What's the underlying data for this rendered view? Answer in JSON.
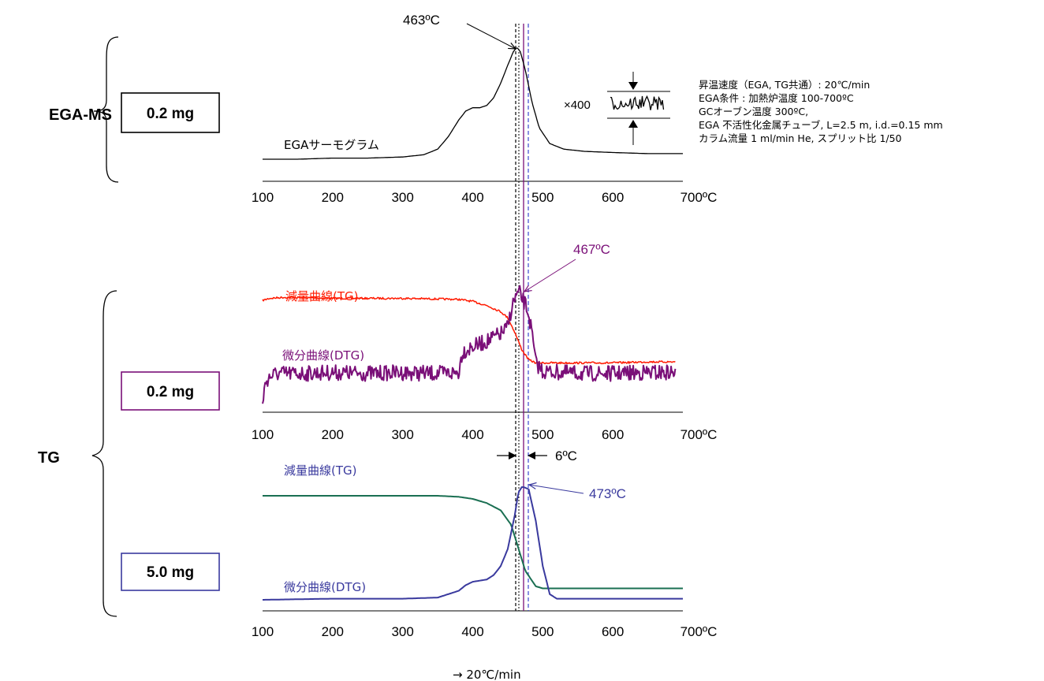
{
  "colors": {
    "black": "#000000",
    "purple": "#7a0f78",
    "red": "#ff1a00",
    "blue": "#3a3a9e",
    "green": "#1a6f52",
    "blue_dash": "#3b46d0"
  },
  "labels": {
    "section_egams": "EGA-MS",
    "section_tg": "TG",
    "box_egams": "0.2 mg",
    "box_tg_small": "0.2 mg",
    "box_tg_large": "5.0 mg",
    "peak_ega": "463ºC",
    "peak_tg_small": "467ºC",
    "peak_tg_large": "473ºC",
    "shift": "6ºC",
    "ega_curve": "EGAサーモグラム",
    "tg_curve_small": "減量曲線(TG)",
    "dtg_curve_small": "微分曲線(DTG)",
    "tg_curve_large": "減量曲線(TG)",
    "dtg_curve_large": "微分曲線(DTG)",
    "inset_mag": "×400",
    "bottom_note": "→ 20℃/min"
  },
  "conditions": [
    "昇温速度（EGA, TG共通）: 20℃/min",
    "EGA条件 : 加熱炉温度 100-700ºC",
    "GCオーブン温度 300ºC,",
    "EGA 不活性化金属チューブ, L=2.5 m, i.d.=0.15 mm",
    "カラム流量 1 ml/min He, スプリット比 1/50"
  ],
  "chart_data": [
    {
      "type": "line",
      "panel": "EGA-MS",
      "x_ticks": [
        "100",
        "200",
        "300",
        "400",
        "500",
        "600",
        "700ºC"
      ],
      "xlim": [
        100,
        700
      ],
      "series": [
        {
          "name": "EGAサーモグラム",
          "color": "#000000",
          "x": [
            100,
            150,
            200,
            250,
            300,
            330,
            350,
            365,
            380,
            390,
            400,
            410,
            420,
            430,
            440,
            450,
            458,
            463,
            468,
            475,
            485,
            495,
            510,
            530,
            560,
            600,
            650,
            700
          ],
          "y": [
            0.0,
            0.0,
            0.01,
            0.01,
            0.02,
            0.04,
            0.09,
            0.2,
            0.35,
            0.43,
            0.46,
            0.46,
            0.48,
            0.55,
            0.68,
            0.84,
            0.96,
            1.0,
            0.96,
            0.8,
            0.5,
            0.28,
            0.14,
            0.09,
            0.07,
            0.06,
            0.05,
            0.05
          ]
        }
      ],
      "peak": 463
    },
    {
      "type": "line",
      "panel": "TG 0.2 mg",
      "x_ticks": [
        "100",
        "200",
        "300",
        "400",
        "500",
        "600",
        "700ºC"
      ],
      "xlim": [
        100,
        700
      ],
      "series": [
        {
          "name": "減量曲線(TG)",
          "color": "#ff1a00",
          "x": [
            100,
            110,
            130,
            200,
            300,
            380,
            400,
            420,
            440,
            450,
            460,
            470,
            480,
            490,
            500,
            550,
            600,
            650,
            690
          ],
          "y": [
            0.93,
            0.95,
            0.96,
            0.95,
            0.95,
            0.94,
            0.92,
            0.88,
            0.82,
            0.76,
            0.62,
            0.45,
            0.35,
            0.32,
            0.32,
            0.32,
            0.32,
            0.33,
            0.33
          ]
        },
        {
          "name": "微分曲線(DTG)",
          "color": "#7a0f78",
          "x": [
            100,
            105,
            110,
            120,
            150,
            200,
            250,
            300,
            350,
            380,
            385,
            400,
            420,
            440,
            450,
            455,
            460,
            465,
            467,
            470,
            475,
            480,
            485,
            490,
            500,
            550,
            600,
            650,
            690
          ],
          "y": [
            0.0,
            0.18,
            0.22,
            0.25,
            0.25,
            0.26,
            0.25,
            0.26,
            0.25,
            0.26,
            0.45,
            0.5,
            0.55,
            0.62,
            0.68,
            0.85,
            0.95,
            1.0,
            1.0,
            0.95,
            0.9,
            0.8,
            0.6,
            0.35,
            0.27,
            0.25,
            0.25,
            0.26,
            0.26
          ]
        }
      ],
      "peak": 467
    },
    {
      "type": "line",
      "panel": "TG 5.0 mg",
      "x_ticks": [
        "100",
        "200",
        "300",
        "400",
        "500",
        "600",
        "700ºC"
      ],
      "xlim": [
        100,
        700
      ],
      "series": [
        {
          "name": "減量曲線(TG)",
          "color": "#1a6f52",
          "x": [
            100,
            200,
            300,
            350,
            380,
            400,
            420,
            440,
            455,
            465,
            475,
            490,
            500,
            520,
            600,
            700
          ],
          "y": [
            1.0,
            1.0,
            1.0,
            1.0,
            0.99,
            0.97,
            0.93,
            0.86,
            0.72,
            0.5,
            0.28,
            0.13,
            0.11,
            0.11,
            0.11,
            0.11
          ]
        },
        {
          "name": "微分曲線(DTG)",
          "color": "#3a3a9e",
          "x": [
            100,
            200,
            300,
            350,
            380,
            390,
            400,
            410,
            420,
            430,
            440,
            450,
            460,
            465,
            470,
            473,
            480,
            490,
            500,
            510,
            520,
            600,
            700
          ],
          "y": [
            0.0,
            0.01,
            0.01,
            0.02,
            0.08,
            0.13,
            0.16,
            0.17,
            0.18,
            0.22,
            0.3,
            0.45,
            0.75,
            0.95,
            1.0,
            1.0,
            0.98,
            0.7,
            0.3,
            0.05,
            0.01,
            0.01,
            0.01
          ]
        }
      ],
      "peak": 473
    }
  ]
}
